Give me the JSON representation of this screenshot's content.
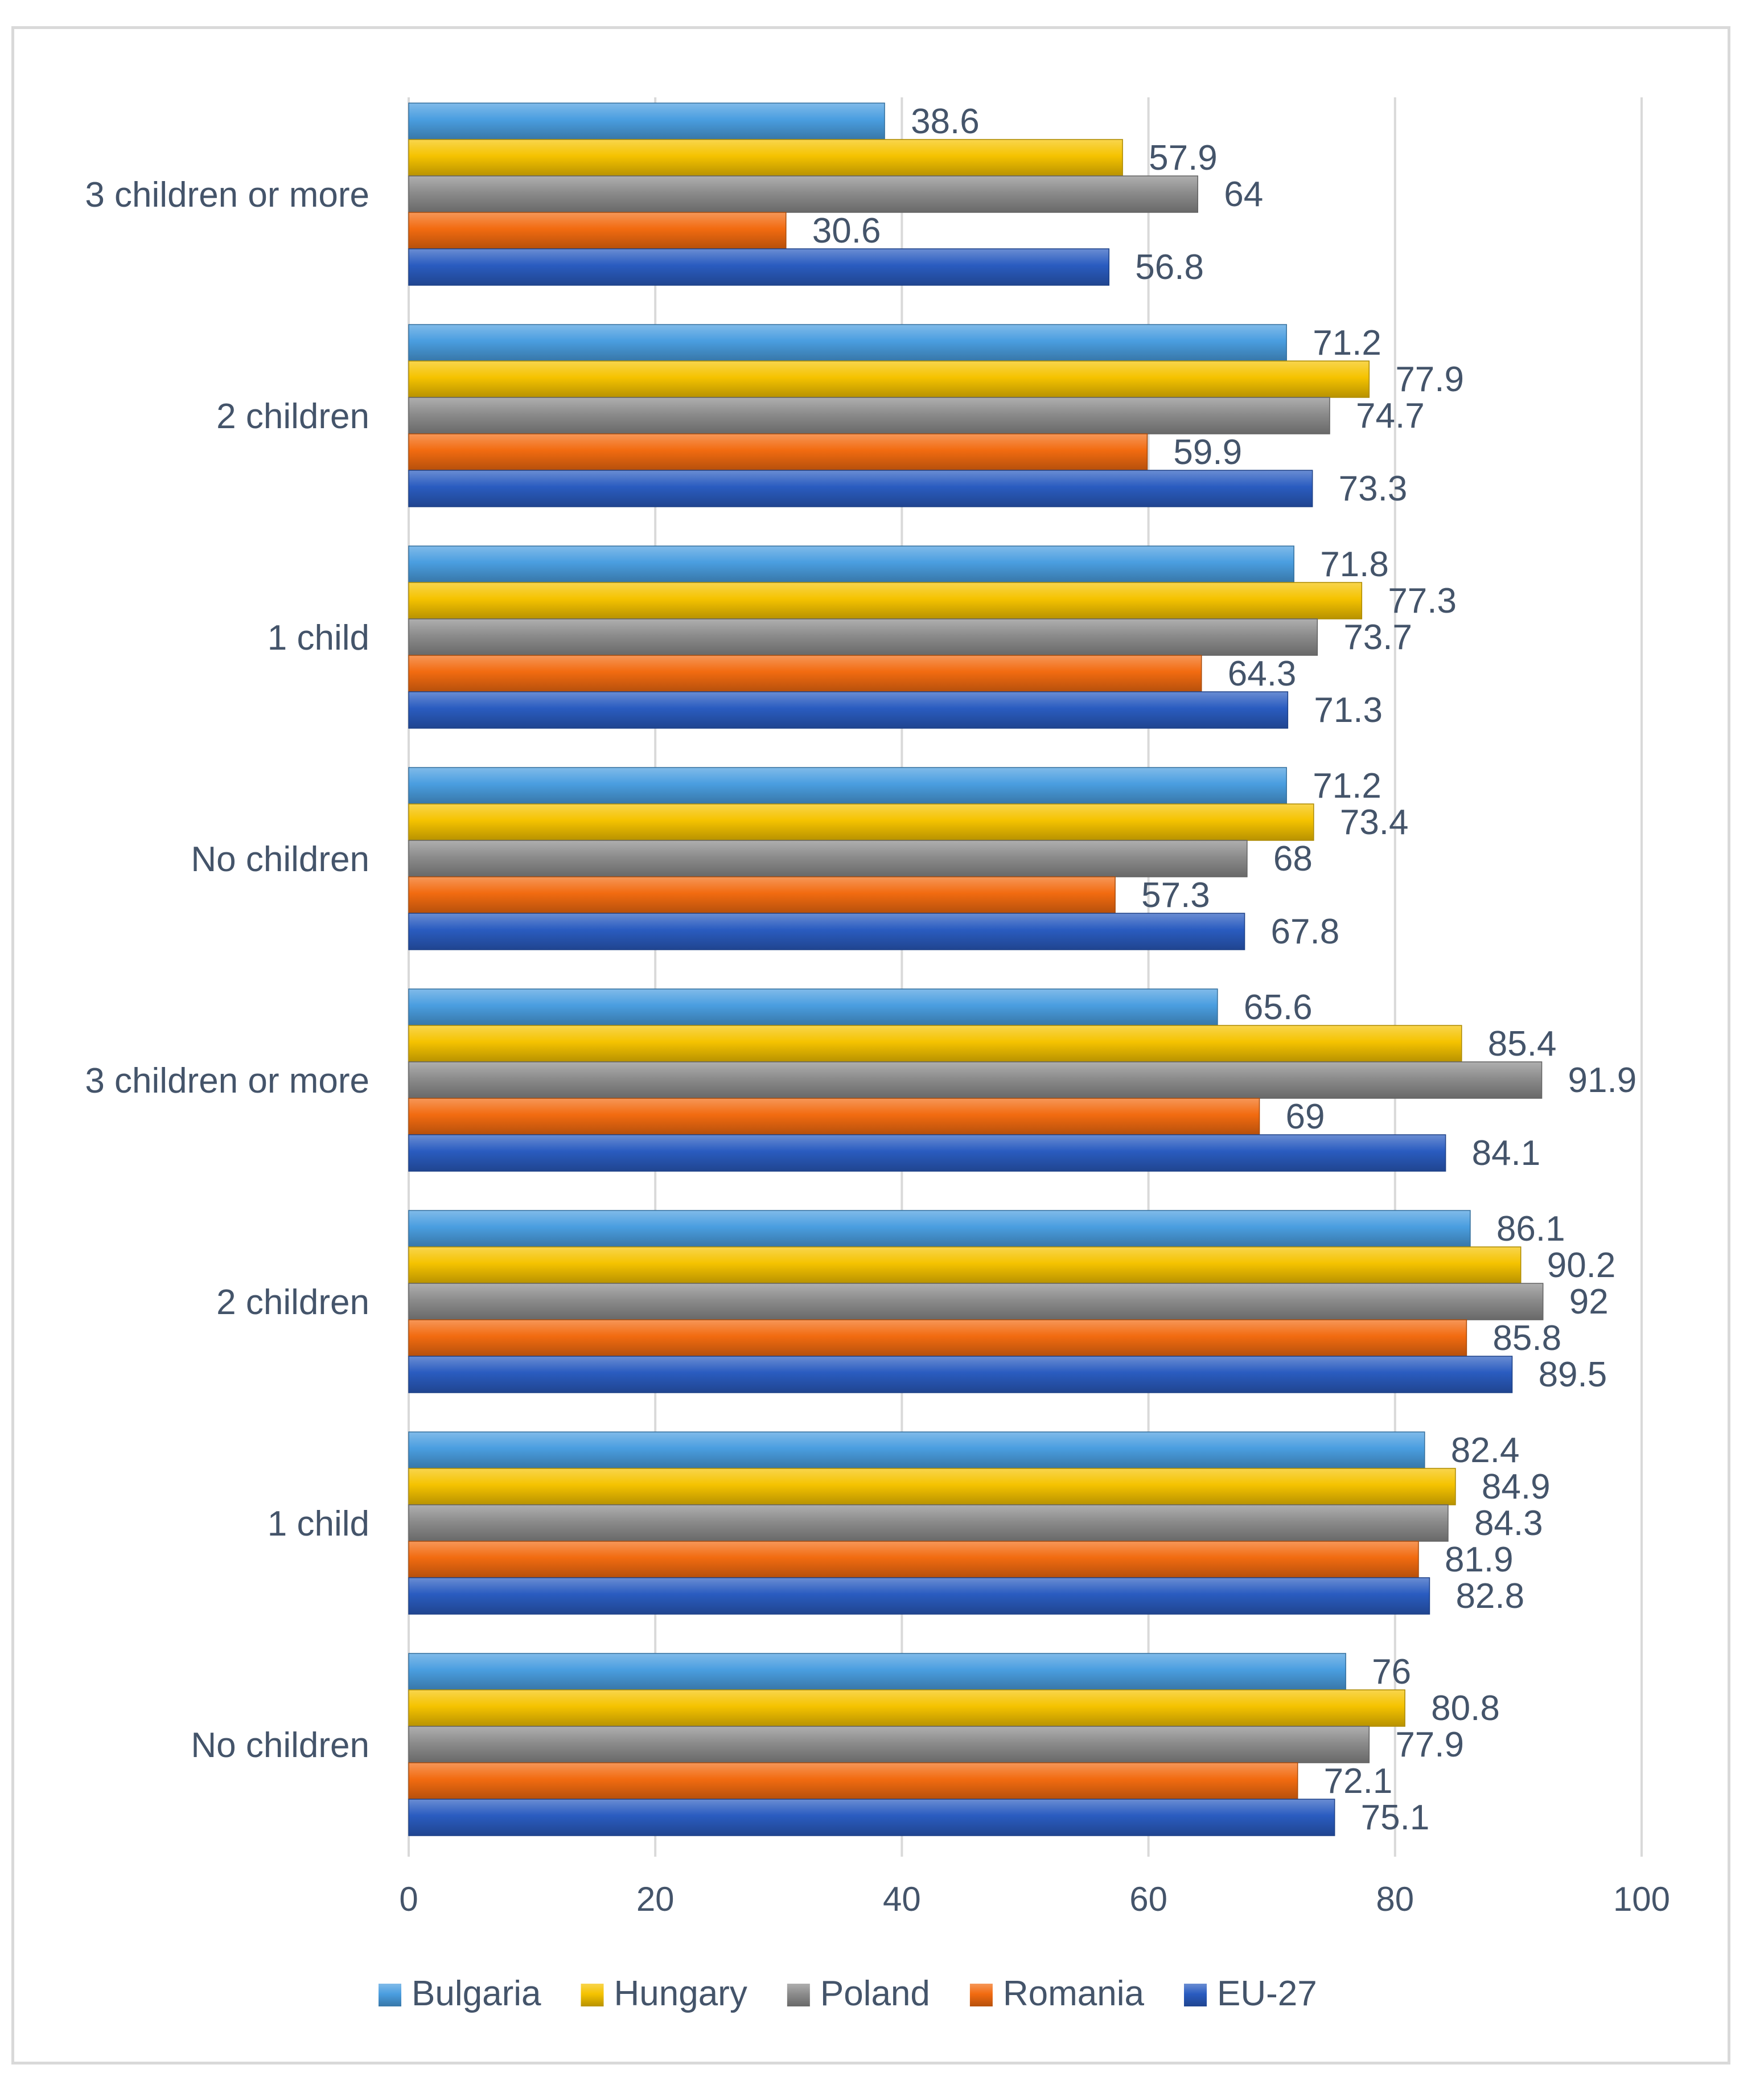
{
  "chart_data": {
    "type": "bar",
    "orientation": "horizontal",
    "categories": [
      "3 children or more",
      "2 children",
      "1 child",
      "No children",
      "3 children or more",
      "2 children",
      "1 child",
      "No children"
    ],
    "series": [
      {
        "name": "Bulgaria",
        "color": "#4a9ee0",
        "values": [
          38.6,
          71.2,
          71.8,
          71.2,
          65.6,
          86.1,
          82.4,
          76
        ]
      },
      {
        "name": "Hungary",
        "color": "#f5c300",
        "values": [
          57.9,
          77.9,
          77.3,
          73.4,
          85.4,
          90.2,
          84.9,
          80.8
        ]
      },
      {
        "name": "Poland",
        "color": "#8c8c8c",
        "values": [
          64,
          74.7,
          73.7,
          68,
          91.9,
          92,
          84.3,
          77.9
        ]
      },
      {
        "name": "Romania",
        "color": "#f26b10",
        "values": [
          30.6,
          59.9,
          64.3,
          57.3,
          69,
          85.8,
          81.9,
          72.1
        ]
      },
      {
        "name": "EU-27",
        "color": "#2a5cc0",
        "values": [
          56.8,
          73.3,
          71.3,
          67.8,
          84.1,
          89.5,
          82.8,
          75.1
        ]
      }
    ],
    "xlim": [
      0,
      100
    ],
    "xticks": [
      0,
      20,
      40,
      60,
      80,
      100
    ],
    "grid": true,
    "legend_position": "bottom"
  }
}
